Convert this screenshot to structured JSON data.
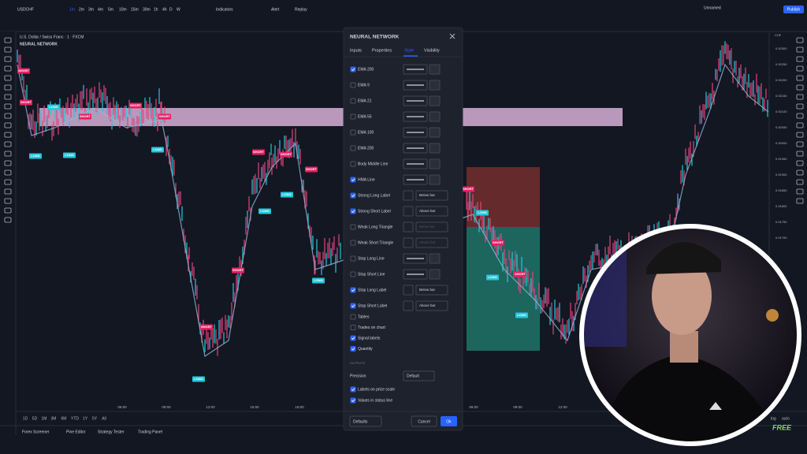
{
  "toolbar": {
    "symbol": "USDCHF",
    "timeframes": [
      "1m",
      "2m",
      "3m",
      "4m",
      "5m",
      "10m",
      "15m",
      "30m",
      "1h",
      "4h",
      "D",
      "W"
    ],
    "buttons": [
      "Indicators",
      "Alert",
      "Replay"
    ],
    "layout_name": "Unnamed",
    "publish": "Publish"
  },
  "legend": {
    "symbol_line": "U.S. Dollar / Swiss Franc · 1 · FXCM",
    "indicator": "NEURAL NETWORK"
  },
  "price_axis": {
    "currency": "CHF",
    "labels": [
      "0.92300",
      "0.92250",
      "0.92200",
      "0.92150",
      "0.92100",
      "0.92050",
      "0.92000",
      "0.91950",
      "0.91900",
      "0.91850",
      "0.91800",
      "0.91750",
      "0.91700"
    ]
  },
  "time_axis": [
    "06:00",
    "09:00",
    "12:00",
    "15:00",
    "18:00",
    "06:00",
    "09:00",
    "12:00"
  ],
  "ranges": [
    "1D",
    "5D",
    "1M",
    "3M",
    "6M",
    "YTD",
    "1Y",
    "5Y",
    "All"
  ],
  "axis_options": [
    "log",
    "auto"
  ],
  "bottom_tabs": [
    "Forex Screener",
    "Pine Editor",
    "Strategy Tester",
    "Trading Panel"
  ],
  "signals": [
    "SHORT",
    "LONG",
    "SHORT",
    "SHORT",
    "LONG",
    "SHORT",
    "LONG",
    "SHORT",
    "SHORT",
    "LONG",
    "LONG",
    "SHORT",
    "LONG",
    "SHORT",
    "LONG",
    "SHORT",
    "SHORT",
    "LONG",
    "SHORT",
    "LONG",
    "SHORT",
    "LONG",
    "SHORT",
    "LONG"
  ],
  "dialog": {
    "title": "NEURAL NETWORK",
    "tabs": [
      "Inputs",
      "Properties",
      "Style",
      "Visibility"
    ],
    "rows": [
      {
        "label": "EMA 200",
        "checked": true
      },
      {
        "label": "EMA 9",
        "checked": false
      },
      {
        "label": "EMA 21",
        "checked": false
      },
      {
        "label": "EMA 55",
        "checked": false
      },
      {
        "label": "EMA 100",
        "checked": false
      },
      {
        "label": "EMA 200",
        "checked": false
      },
      {
        "label": "Body Middle Line",
        "checked": false
      },
      {
        "label": "HMA Line",
        "checked": true
      },
      {
        "label": "Strong Long Label",
        "checked": true,
        "select": "Below bar"
      },
      {
        "label": "Strong Short Label",
        "checked": true,
        "select": "Above bar"
      },
      {
        "label": "Weak Long Triangle",
        "checked": false,
        "select": "Below bar"
      },
      {
        "label": "Weak Short Triangle",
        "checked": false,
        "select": "Above bar"
      },
      {
        "label": "Stop Long Line",
        "checked": false
      },
      {
        "label": "Stop Short Line",
        "checked": false
      },
      {
        "label": "Stop Long Label",
        "checked": true,
        "select": "Below bar"
      },
      {
        "label": "Stop Short Label",
        "checked": true,
        "select": "Above bar"
      }
    ],
    "checks": [
      {
        "label": "Tables",
        "checked": false
      },
      {
        "label": "Trades on chart",
        "checked": false
      },
      {
        "label": "Signal labels",
        "checked": true
      },
      {
        "label": "Quantity",
        "checked": true
      }
    ],
    "outputs_heading": "OUTPUTS",
    "precision_label": "Precision",
    "precision_value": "Default",
    "output_checks": [
      {
        "label": "Labels on price scale",
        "checked": true
      },
      {
        "label": "Values in status line",
        "checked": true
      }
    ],
    "defaults": "Defaults",
    "cancel": "Cancel",
    "ok": "Ok"
  },
  "watermark": "FREE"
}
